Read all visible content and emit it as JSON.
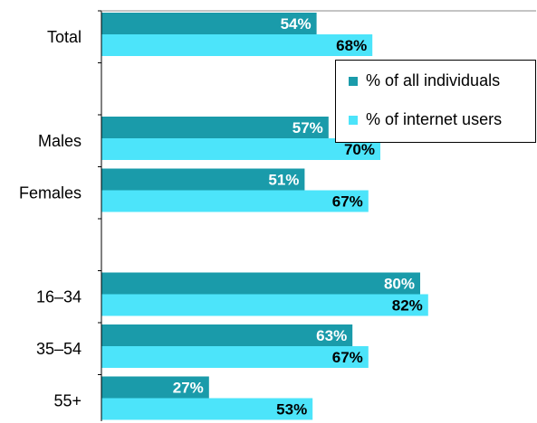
{
  "chart_data": {
    "type": "bar",
    "orientation": "horizontal",
    "categories": [
      "Total",
      "",
      "Males",
      "Females",
      "",
      "16–34",
      "35–54",
      "55+"
    ],
    "series": [
      {
        "name": "% of all individuals",
        "color": "#1a9baa",
        "values": [
          54,
          null,
          57,
          51,
          null,
          80,
          63,
          27
        ],
        "labels": [
          "54%",
          "",
          "57%",
          "51%",
          "",
          "80%",
          "63%",
          "27%"
        ]
      },
      {
        "name": "% of internet users",
        "color": "#4ce4fa",
        "values": [
          68,
          null,
          70,
          67,
          null,
          82,
          67,
          53
        ],
        "labels": [
          "68%",
          "",
          "70%",
          "67%",
          "",
          "82%",
          "67%",
          "53%"
        ]
      }
    ],
    "xlim": [
      0,
      100
    ],
    "legend_position": "top-right",
    "grid": false
  }
}
